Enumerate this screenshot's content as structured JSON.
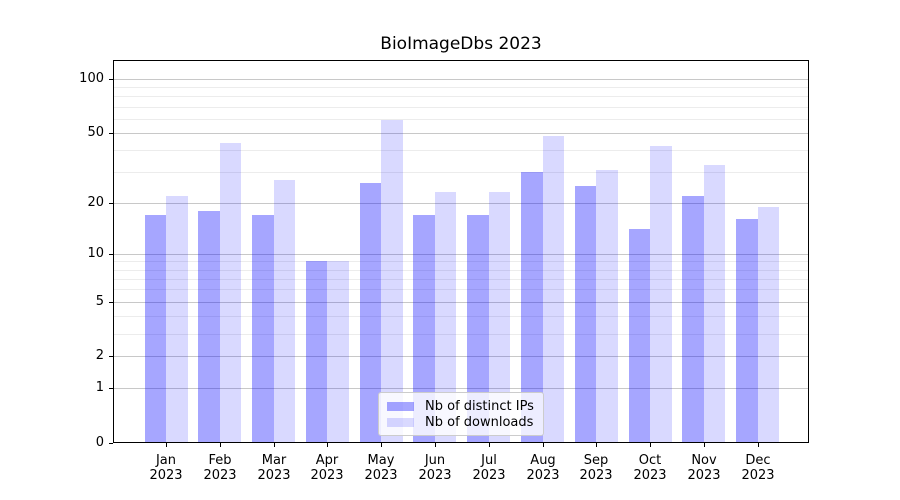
{
  "chart_data": {
    "type": "bar",
    "title": "BioImageDbs 2023",
    "categories": [
      "Jan",
      "Feb",
      "Mar",
      "Apr",
      "May",
      "Jun",
      "Jul",
      "Aug",
      "Sep",
      "Oct",
      "Nov",
      "Dec"
    ],
    "category_year": "2023",
    "series": [
      {
        "name": "Nb of distinct IPs",
        "color": "#0000ff",
        "alpha": 0.35,
        "values": [
          17,
          18,
          17,
          9,
          26,
          17,
          17,
          30,
          25,
          14,
          22,
          16
        ]
      },
      {
        "name": "Nb of downloads",
        "color": "#0000ff",
        "alpha": 0.15,
        "values": [
          22,
          44,
          27,
          9,
          59,
          23,
          23,
          48,
          31,
          42,
          33,
          19
        ]
      }
    ],
    "y_axis": {
      "scale": "symlog (y proportional to ln(1+v))",
      "tick_values": [
        0,
        1,
        2,
        5,
        10,
        20,
        50,
        100
      ],
      "tick_labels": [
        "0",
        "1",
        "2",
        "5",
        "10",
        "20",
        "50",
        "100"
      ],
      "minor_gridline_values": [
        3,
        4,
        6,
        7,
        8,
        9,
        30,
        40,
        60,
        70,
        80,
        90
      ],
      "range_max": 127
    },
    "x_axis": {
      "tick_label_format": "month over year, two lines"
    },
    "legend": {
      "position": "lower center",
      "background": "#ffffff",
      "border_color": "#cccccc"
    },
    "grid": {
      "major_color": "#c8c8c8",
      "minor_color": "#ececec"
    },
    "colors": {
      "spine": "#000000",
      "text": "#000000",
      "background": "#ffffff"
    }
  }
}
